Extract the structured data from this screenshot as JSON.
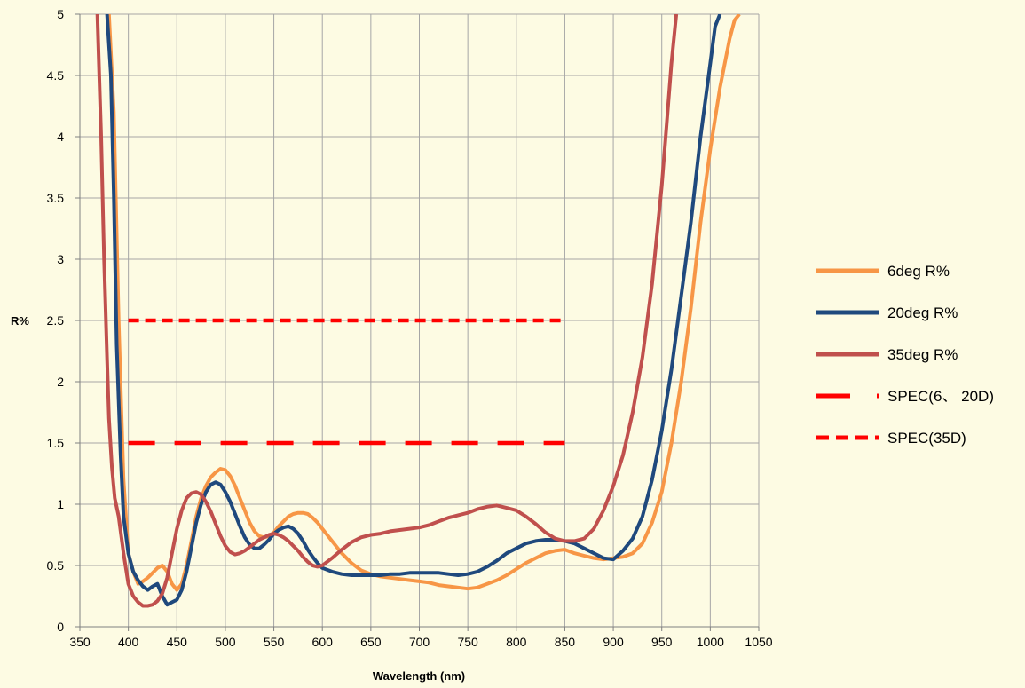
{
  "chart_data": {
    "type": "line",
    "title": "",
    "xlabel": "Wavelength (nm)",
    "ylabel": "R%",
    "xlim": [
      350,
      1050
    ],
    "ylim": [
      0,
      5
    ],
    "x_ticks": [
      350,
      400,
      450,
      500,
      550,
      600,
      650,
      700,
      750,
      800,
      850,
      900,
      950,
      1000,
      1050
    ],
    "y_ticks": [
      0,
      0.5,
      1,
      1.5,
      2,
      2.5,
      3,
      3.5,
      4,
      4.5,
      5
    ],
    "x_tick_labels": [
      "350",
      "400",
      "450",
      "500",
      "550",
      "600",
      "650",
      "700",
      "750",
      "800",
      "850",
      "900",
      "950",
      "1000",
      "1050"
    ],
    "y_tick_labels": [
      "0",
      "0.5",
      "1",
      "1.5",
      "2",
      "2.5",
      "3",
      "3.5",
      "4",
      "4.5",
      "5"
    ],
    "grid": true,
    "legend_position": "right",
    "series": [
      {
        "name": "6deg R%",
        "color": "#f79646",
        "style": "solid",
        "x": [
          380,
          385,
          390,
          395,
          400,
          405,
          410,
          415,
          420,
          425,
          430,
          435,
          440,
          445,
          450,
          455,
          460,
          465,
          470,
          475,
          480,
          485,
          490,
          495,
          500,
          505,
          510,
          515,
          520,
          525,
          530,
          535,
          540,
          545,
          550,
          555,
          560,
          565,
          570,
          575,
          580,
          585,
          590,
          595,
          600,
          610,
          620,
          630,
          640,
          650,
          660,
          670,
          680,
          690,
          700,
          710,
          720,
          730,
          740,
          750,
          760,
          770,
          780,
          790,
          800,
          810,
          820,
          830,
          840,
          850,
          860,
          870,
          880,
          890,
          900,
          910,
          920,
          930,
          940,
          950,
          960,
          970,
          980,
          990,
          1000,
          1010,
          1020,
          1025,
          1030
        ],
        "y": [
          5.0,
          4.2,
          2.5,
          1.2,
          0.6,
          0.45,
          0.35,
          0.37,
          0.4,
          0.44,
          0.48,
          0.5,
          0.45,
          0.35,
          0.3,
          0.35,
          0.5,
          0.7,
          0.9,
          1.05,
          1.15,
          1.22,
          1.26,
          1.29,
          1.28,
          1.23,
          1.15,
          1.05,
          0.95,
          0.85,
          0.78,
          0.74,
          0.73,
          0.74,
          0.77,
          0.82,
          0.86,
          0.9,
          0.92,
          0.93,
          0.93,
          0.92,
          0.89,
          0.85,
          0.8,
          0.7,
          0.6,
          0.52,
          0.46,
          0.43,
          0.41,
          0.4,
          0.39,
          0.38,
          0.37,
          0.36,
          0.34,
          0.33,
          0.32,
          0.31,
          0.32,
          0.35,
          0.38,
          0.42,
          0.47,
          0.52,
          0.56,
          0.6,
          0.62,
          0.63,
          0.6,
          0.58,
          0.56,
          0.55,
          0.56,
          0.57,
          0.6,
          0.68,
          0.85,
          1.1,
          1.5,
          2.0,
          2.6,
          3.3,
          3.9,
          4.4,
          4.8,
          4.95,
          5.0
        ]
      },
      {
        "name": "20deg R%",
        "color": "#1f497d",
        "style": "solid",
        "x": [
          378,
          382,
          385,
          388,
          392,
          395,
          400,
          405,
          410,
          415,
          420,
          425,
          430,
          435,
          440,
          445,
          450,
          455,
          460,
          465,
          470,
          475,
          480,
          485,
          490,
          495,
          500,
          505,
          510,
          515,
          520,
          525,
          530,
          535,
          540,
          545,
          550,
          555,
          560,
          565,
          570,
          575,
          580,
          585,
          590,
          595,
          600,
          610,
          620,
          630,
          640,
          650,
          660,
          670,
          680,
          690,
          700,
          710,
          720,
          730,
          740,
          750,
          760,
          770,
          780,
          790,
          800,
          810,
          820,
          830,
          840,
          850,
          860,
          870,
          880,
          890,
          900,
          910,
          920,
          930,
          940,
          950,
          960,
          970,
          980,
          990,
          1000,
          1005,
          1010
        ],
        "y": [
          5.0,
          4.5,
          3.5,
          2.3,
          1.4,
          0.9,
          0.6,
          0.45,
          0.38,
          0.33,
          0.3,
          0.33,
          0.35,
          0.25,
          0.18,
          0.2,
          0.22,
          0.3,
          0.45,
          0.65,
          0.85,
          1.0,
          1.1,
          1.16,
          1.18,
          1.16,
          1.1,
          1.02,
          0.92,
          0.82,
          0.73,
          0.67,
          0.64,
          0.64,
          0.67,
          0.71,
          0.76,
          0.79,
          0.81,
          0.82,
          0.8,
          0.76,
          0.7,
          0.63,
          0.57,
          0.52,
          0.48,
          0.45,
          0.43,
          0.42,
          0.42,
          0.42,
          0.42,
          0.43,
          0.43,
          0.44,
          0.44,
          0.44,
          0.44,
          0.43,
          0.42,
          0.43,
          0.45,
          0.49,
          0.54,
          0.6,
          0.64,
          0.68,
          0.7,
          0.71,
          0.71,
          0.7,
          0.68,
          0.64,
          0.6,
          0.56,
          0.55,
          0.62,
          0.72,
          0.9,
          1.2,
          1.6,
          2.1,
          2.7,
          3.3,
          4.0,
          4.6,
          4.9,
          5.0
        ]
      },
      {
        "name": "35deg R%",
        "color": "#c0504d",
        "style": "solid",
        "x": [
          368,
          372,
          375,
          378,
          380,
          383,
          386,
          390,
          395,
          400,
          405,
          410,
          415,
          420,
          425,
          430,
          435,
          440,
          445,
          450,
          455,
          460,
          465,
          470,
          475,
          480,
          485,
          490,
          495,
          500,
          505,
          510,
          515,
          520,
          525,
          530,
          535,
          540,
          545,
          550,
          555,
          560,
          565,
          570,
          575,
          580,
          585,
          590,
          595,
          600,
          610,
          620,
          630,
          640,
          650,
          660,
          670,
          680,
          690,
          700,
          710,
          720,
          730,
          740,
          750,
          760,
          770,
          780,
          790,
          800,
          810,
          820,
          830,
          840,
          850,
          860,
          870,
          880,
          890,
          900,
          910,
          920,
          930,
          940,
          950,
          955,
          960,
          965
        ],
        "y": [
          5.0,
          4.0,
          3.0,
          2.2,
          1.7,
          1.3,
          1.05,
          0.9,
          0.6,
          0.35,
          0.25,
          0.2,
          0.17,
          0.17,
          0.18,
          0.21,
          0.27,
          0.4,
          0.6,
          0.8,
          0.95,
          1.05,
          1.09,
          1.1,
          1.08,
          1.02,
          0.94,
          0.84,
          0.74,
          0.66,
          0.61,
          0.59,
          0.6,
          0.62,
          0.65,
          0.68,
          0.71,
          0.73,
          0.75,
          0.76,
          0.75,
          0.73,
          0.7,
          0.66,
          0.62,
          0.57,
          0.53,
          0.5,
          0.49,
          0.5,
          0.56,
          0.63,
          0.69,
          0.73,
          0.75,
          0.76,
          0.78,
          0.79,
          0.8,
          0.81,
          0.83,
          0.86,
          0.89,
          0.91,
          0.93,
          0.96,
          0.98,
          0.99,
          0.97,
          0.95,
          0.9,
          0.84,
          0.77,
          0.72,
          0.7,
          0.7,
          0.72,
          0.8,
          0.95,
          1.15,
          1.4,
          1.75,
          2.2,
          2.8,
          3.6,
          4.1,
          4.6,
          5.0
        ]
      },
      {
        "name": "SPEC(6、 20D)",
        "color": "#ff0000",
        "style": "long-dash",
        "x": [
          400,
          850
        ],
        "y": [
          1.5,
          1.5
        ]
      },
      {
        "name": "SPEC(35D)",
        "color": "#ff0000",
        "style": "dash",
        "x": [
          400,
          850
        ],
        "y": [
          2.5,
          2.5
        ]
      }
    ]
  }
}
